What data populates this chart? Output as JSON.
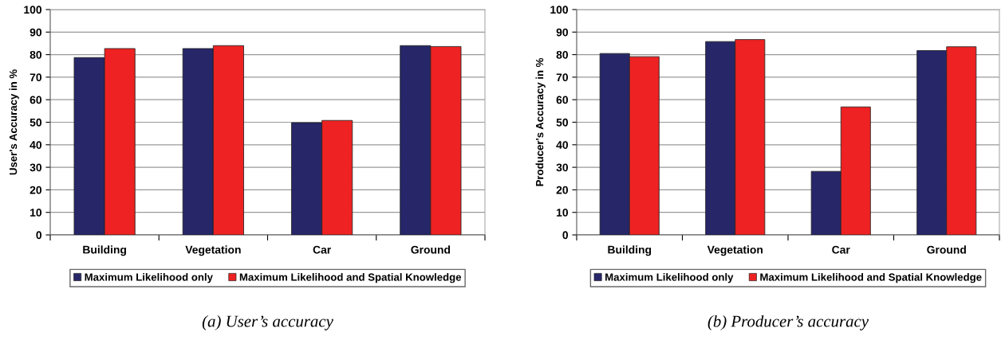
{
  "chart_data": [
    {
      "type": "bar",
      "title": "(a) User’s accuracy",
      "ylabel": "User's Accuracy in %",
      "categories": [
        "Building",
        "Vegetation",
        "Car",
        "Ground"
      ],
      "series": [
        {
          "name": "Maximum Likelihood only",
          "color": "#262669",
          "values": [
            78.7,
            82.7,
            49.8,
            84.0
          ]
        },
        {
          "name": "Maximum Likelihood and Spatial Knowledge",
          "color": "#ee2222",
          "values": [
            82.7,
            84.0,
            50.8,
            83.6
          ]
        }
      ],
      "ylim": [
        0,
        100
      ],
      "yticks": [
        0,
        10,
        20,
        30,
        40,
        50,
        60,
        70,
        80,
        90,
        100
      ],
      "grid": "y",
      "legend": "bottom"
    },
    {
      "type": "bar",
      "title": "(b) Producer’s accuracy",
      "ylabel": "Producer's Accuracy in %",
      "categories": [
        "Building",
        "Vegetation",
        "Car",
        "Ground"
      ],
      "series": [
        {
          "name": "Maximum Likelihood only",
          "color": "#262669",
          "values": [
            80.5,
            85.8,
            28.2,
            81.8
          ]
        },
        {
          "name": "Maximum Likelihood and Spatial Knowledge",
          "color": "#ee2222",
          "values": [
            79.1,
            86.7,
            56.8,
            83.5
          ]
        }
      ],
      "ylim": [
        0,
        100
      ],
      "yticks": [
        0,
        10,
        20,
        30,
        40,
        50,
        60,
        70,
        80,
        90,
        100
      ],
      "grid": "y",
      "legend": "bottom"
    }
  ]
}
